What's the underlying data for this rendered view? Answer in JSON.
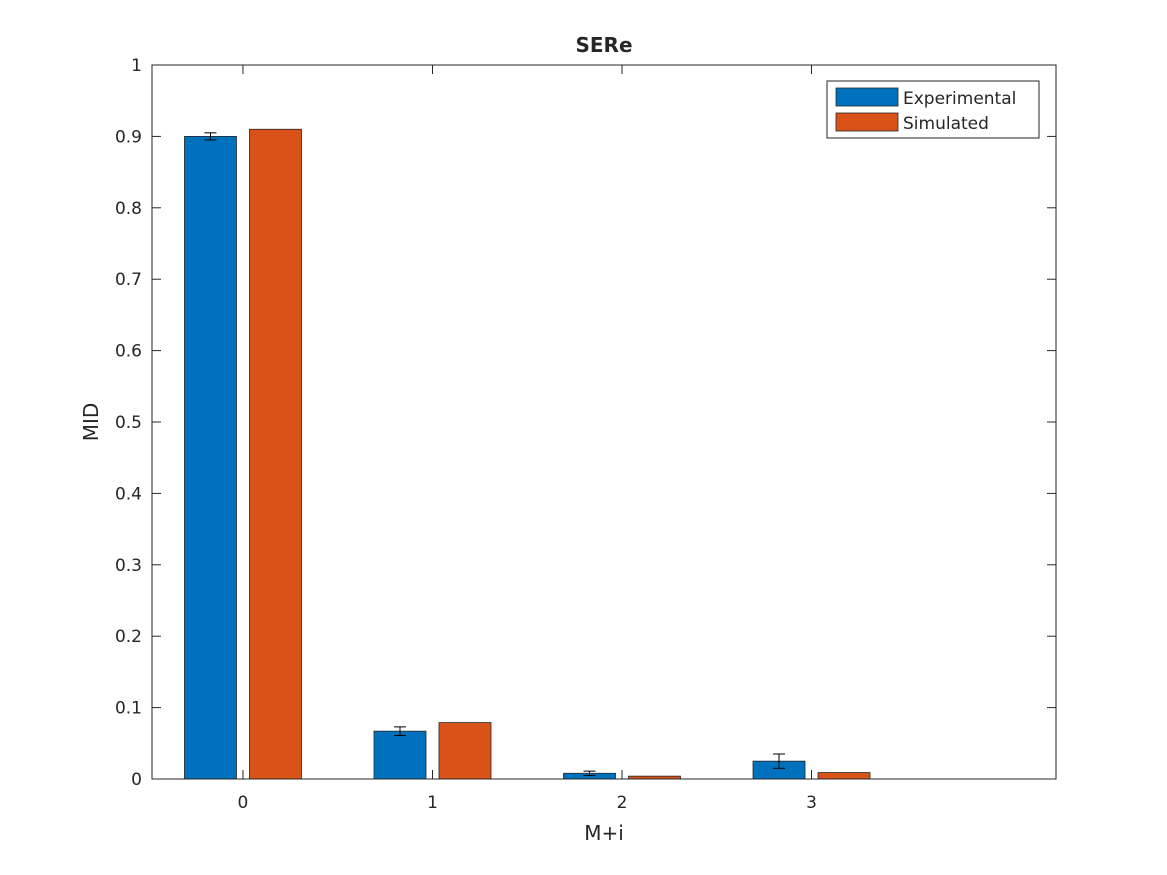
{
  "chart_data": {
    "type": "bar",
    "title": "SERe",
    "xlabel": "M+i",
    "ylabel": "MID",
    "categories": [
      "0",
      "1",
      "2",
      "3"
    ],
    "ylim": [
      0,
      1
    ],
    "yticks": [
      "0",
      "0.1",
      "0.2",
      "0.3",
      "0.4",
      "0.5",
      "0.6",
      "0.7",
      "0.8",
      "0.9",
      "1"
    ],
    "grid": false,
    "legend_position": "top-right",
    "series": [
      {
        "name": "Experimental",
        "color": "#0072BD",
        "values": [
          0.9,
          0.067,
          0.008,
          0.025
        ],
        "errors": [
          0.005,
          0.006,
          0.003,
          0.01
        ]
      },
      {
        "name": "Simulated",
        "color": "#D95319",
        "values": [
          0.91,
          0.079,
          0.004,
          0.009
        ],
        "errors": [
          0.0,
          0.0,
          0.0,
          0.0
        ]
      }
    ]
  }
}
